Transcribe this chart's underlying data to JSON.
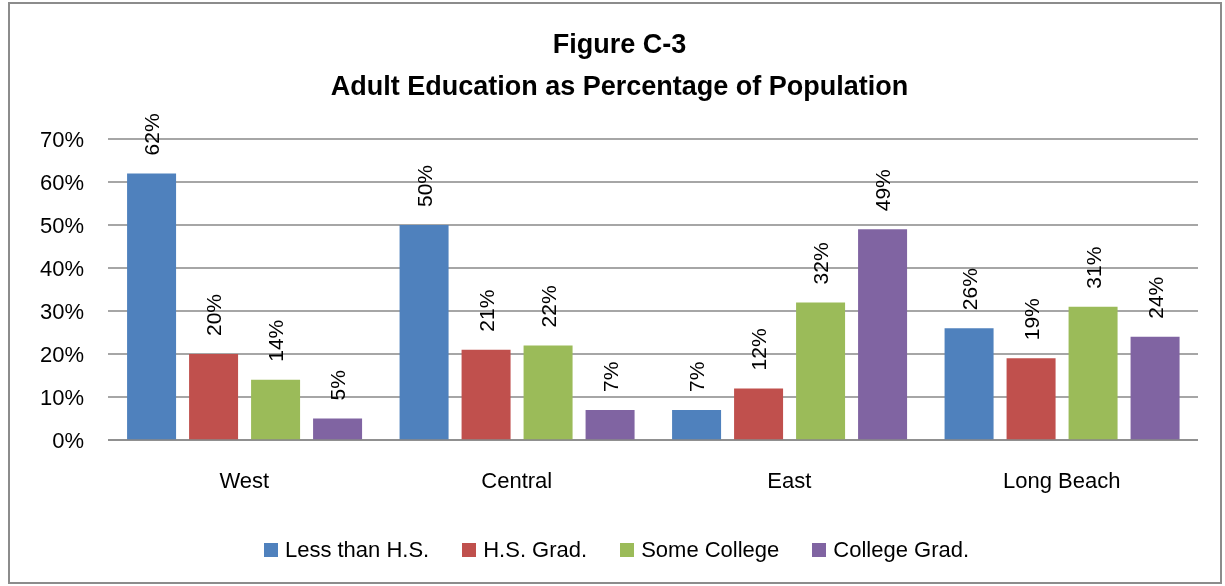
{
  "chart_data": {
    "type": "bar",
    "title": "Figure C-3",
    "subtitle": "Adult Education as Percentage of Population",
    "categories": [
      "West",
      "Central",
      "East",
      "Long Beach"
    ],
    "series": [
      {
        "name": "Less than H.S.",
        "color": "#4f81bd",
        "values": [
          62,
          50,
          7,
          26
        ],
        "value_labels": [
          "62%",
          "50%",
          "7%",
          "26%"
        ]
      },
      {
        "name": "H.S. Grad.",
        "color": "#c0504d",
        "values": [
          20,
          21,
          12,
          19
        ],
        "value_labels": [
          "20%",
          "21%",
          "12%",
          "19%"
        ]
      },
      {
        "name": "Some College",
        "color": "#9bbb59",
        "values": [
          14,
          22,
          32,
          31
        ],
        "value_labels": [
          "14%",
          "22%",
          "32%",
          "31%"
        ]
      },
      {
        "name": "College Grad.",
        "color": "#8064a2",
        "values": [
          5,
          7,
          49,
          24
        ],
        "value_labels": [
          "5%",
          "7%",
          "49%",
          "24%"
        ]
      }
    ],
    "ylim": [
      0,
      70
    ],
    "yticks": [
      {
        "value": 0,
        "label": "0%"
      },
      {
        "value": 10,
        "label": "10%"
      },
      {
        "value": 20,
        "label": "20%"
      },
      {
        "value": 30,
        "label": "30%"
      },
      {
        "value": 40,
        "label": "40%"
      },
      {
        "value": 50,
        "label": "50%"
      },
      {
        "value": 60,
        "label": "60%"
      },
      {
        "value": 70,
        "label": "70%"
      }
    ],
    "grid": "y",
    "legend": "bottom"
  }
}
